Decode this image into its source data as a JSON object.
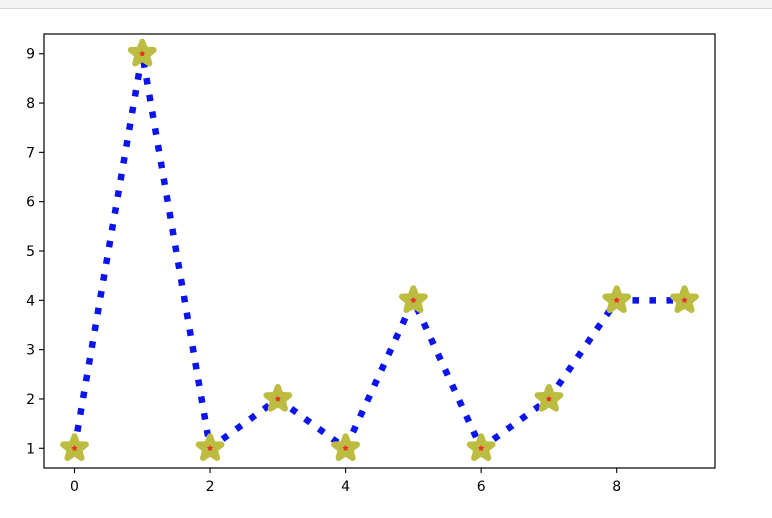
{
  "chart_data": {
    "type": "line",
    "x": [
      0,
      1,
      2,
      3,
      4,
      5,
      6,
      7,
      8,
      9
    ],
    "series": [
      {
        "values": [
          1,
          9,
          1,
          2,
          1,
          4,
          1,
          2,
          4,
          4
        ]
      }
    ],
    "title": "",
    "xlabel": "",
    "ylabel": "",
    "xlim": [
      -0.45,
      9.45
    ],
    "ylim": [
      0.6,
      9.4
    ],
    "xticks": [
      0,
      2,
      4,
      6,
      8
    ],
    "yticks": [
      1,
      2,
      3,
      4,
      5,
      6,
      7,
      8,
      9
    ],
    "grid": false,
    "style": {
      "line_color": "#0a14ee",
      "line_style": "dotted",
      "marker": "star",
      "marker_face_color": "#e8312a",
      "marker_edge_color": "#bcbd40"
    }
  }
}
